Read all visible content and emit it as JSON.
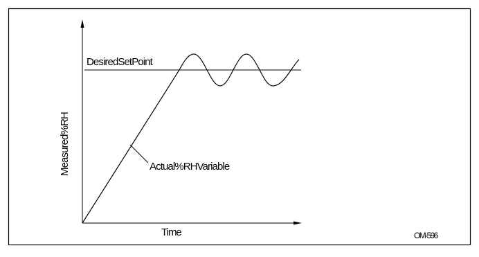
{
  "labels": {
    "setpoint": "DesiredSetPoint",
    "variable": "Actual%RHVariable",
    "y_axis": "Measured%RH",
    "x_axis": "Time",
    "figure_code": "OM-596"
  },
  "colors": {
    "stroke": "#000000",
    "background": "#ffffff"
  }
}
